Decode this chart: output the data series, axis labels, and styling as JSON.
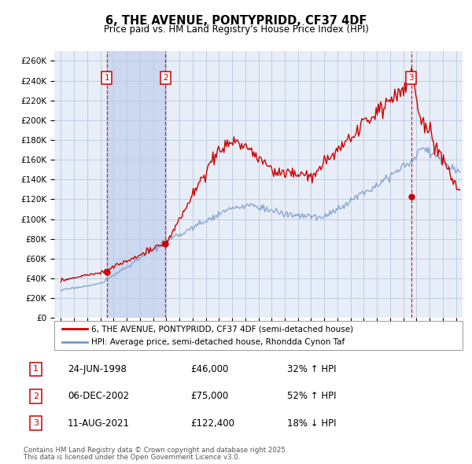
{
  "title": "6, THE AVENUE, PONTYPRIDD, CF37 4DF",
  "subtitle": "Price paid vs. HM Land Registry's House Price Index (HPI)",
  "legend_line1": "6, THE AVENUE, PONTYPRIDD, CF37 4DF (semi-detached house)",
  "legend_line2": "HPI: Average price, semi-detached house, Rhondda Cynon Taf",
  "footer": "Contains HM Land Registry data © Crown copyright and database right 2025.\nThis data is licensed under the Open Government Licence v3.0.",
  "transactions": [
    {
      "num": 1,
      "date": "24-JUN-1998",
      "price": 46000,
      "pct": "32% ↑ HPI",
      "year": 1998.48
    },
    {
      "num": 2,
      "date": "06-DEC-2002",
      "price": 75000,
      "pct": "52% ↑ HPI",
      "year": 2002.93
    },
    {
      "num": 3,
      "date": "11-AUG-2021",
      "price": 122400,
      "pct": "18% ↓ HPI",
      "year": 2021.61
    }
  ],
  "ylim": [
    0,
    270000
  ],
  "yticks": [
    0,
    20000,
    40000,
    60000,
    80000,
    100000,
    120000,
    140000,
    160000,
    180000,
    200000,
    220000,
    240000,
    260000
  ],
  "xlim_start": 1994.5,
  "xlim_end": 2025.5,
  "bg_color": "#e8eef8",
  "grid_color": "#b8c8e0",
  "red_color": "#cc0000",
  "blue_color": "#7799cc",
  "highlight_bg": "#ccd8f0"
}
